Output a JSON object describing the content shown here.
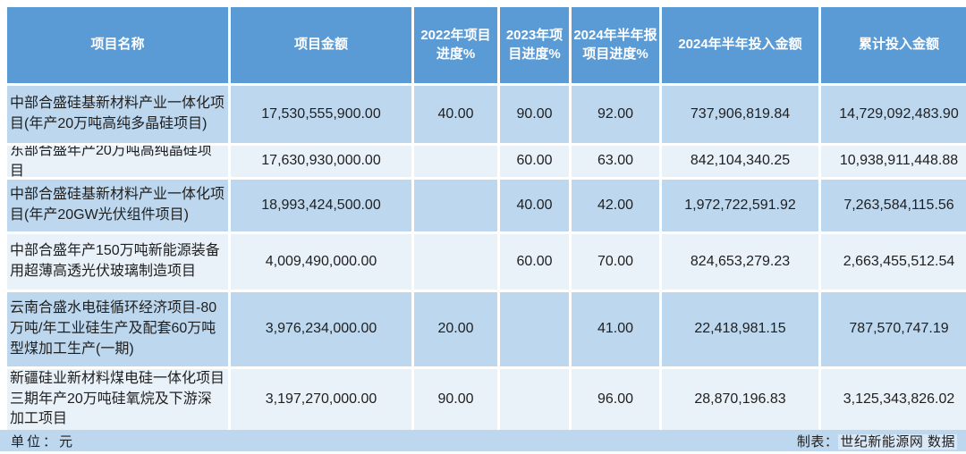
{
  "chart_data": {
    "type": "table",
    "columns": [
      "项目名称",
      "项目金额",
      "2022年项目进度%",
      "2023年项目进度%",
      "2024年半年报项目进度%",
      "2024年半年投入金额",
      "累计投入金额"
    ],
    "rows": [
      [
        "中部合盛硅基新材料产业一体化项目(年产20万吨高纯多晶硅项目)",
        "17,530,555,900.00",
        "40.00",
        "90.00",
        "92.00",
        "737,906,819.84",
        "14,729,092,483.90"
      ],
      [
        "东部合盛年产20万吨高纯晶硅项目",
        "17,630,930,000.00",
        "",
        "60.00",
        "63.00",
        "842,104,340.25",
        "10,938,911,448.88"
      ],
      [
        "中部合盛硅基新材料产业一体化项目(年产20GW光伏组件项目)",
        "18,993,424,500.00",
        "",
        "40.00",
        "42.00",
        "1,972,722,591.92",
        "7,263,584,115.56"
      ],
      [
        "中部合盛年产150万吨新能源装备用超薄高透光伏玻璃制造项目",
        "4,009,490,000.00",
        "",
        "60.00",
        "70.00",
        "824,653,279.23",
        "2,663,455,512.54"
      ],
      [
        "云南合盛水电硅循环经济项目-80万吨/年工业硅生产及配套60万吨型煤加工生产(一期)",
        "3,976,234,000.00",
        "20.00",
        "",
        "41.00",
        "22,418,981.15",
        "787,570,747.19"
      ],
      [
        "新疆硅业新材料煤电硅一体化项目三期年产20万吨硅氧烷及下游深加工项目",
        "3,197,270,000.00",
        "90.00",
        "",
        "96.00",
        "28,870,196.83",
        "3,125,343,826.02"
      ]
    ],
    "title": "",
    "legend_position": "none",
    "grid": "white gaps between light-blue banded rows"
  },
  "footer": {
    "unit_label": "单位：元",
    "credit_prefix": "制表：",
    "credit_source": "世纪新能源网 数据"
  },
  "colors": {
    "header_bg": "#5B9BD5",
    "header_text": "#FFFFFF",
    "row_odd_bg": "#BDD7EE",
    "row_even_bg": "#E9F1F9",
    "footer_bg": "#BDD7EE",
    "credit_highlight": "#D9E8F6",
    "body_text": "#1F1F1F"
  }
}
